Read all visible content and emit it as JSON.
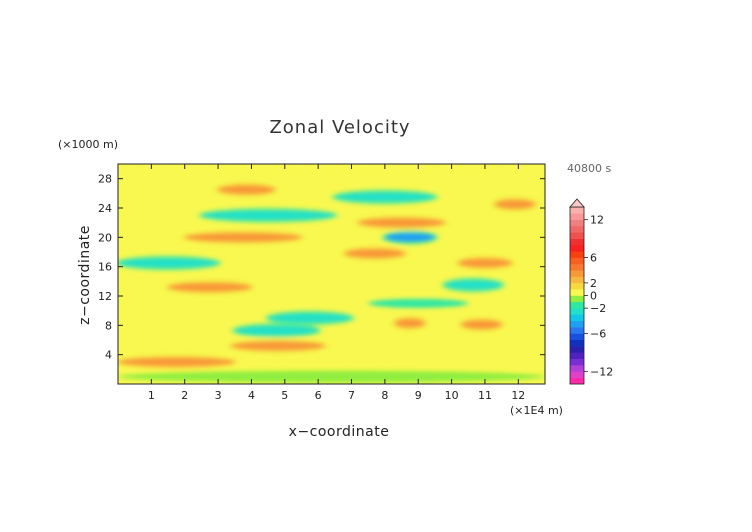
{
  "chart_data": {
    "type": "heatmap",
    "title": "Zonal Velocity",
    "xlabel": "x−coordinate",
    "ylabel": "z−coordinate",
    "x_unit_label": "(×1E4 m)",
    "y_unit_label": "(×1000 m)",
    "time_label": "40800 s",
    "xlim": [
      0,
      12.8
    ],
    "ylim": [
      0,
      30
    ],
    "x_ticks": [
      1,
      2,
      3,
      4,
      5,
      6,
      7,
      8,
      9,
      10,
      11,
      12
    ],
    "y_ticks": [
      4,
      8,
      12,
      16,
      20,
      24,
      28
    ],
    "colorbar": {
      "levels": [
        -14,
        -13,
        -12,
        -11,
        -10,
        -9,
        -8,
        -7,
        -6,
        -5,
        -4,
        -3,
        -2,
        -1,
        0,
        1,
        2,
        3,
        4,
        5,
        6,
        7,
        8,
        9,
        10,
        11,
        12,
        13,
        14
      ],
      "colors": [
        "#ff2aa8",
        "#e040c8",
        "#b040d8",
        "#7a30d0",
        "#5020c0",
        "#2a20b0",
        "#1030c0",
        "#1a50e0",
        "#2a78f0",
        "#20a0f0",
        "#10c8e8",
        "#20e0c8",
        "#30e8a0",
        "#90ee40",
        "#f8f850",
        "#f8d840",
        "#f8b840",
        "#f89838",
        "#f87830",
        "#f86020",
        "#f84010",
        "#f82020",
        "#f03030",
        "#f05050",
        "#f06868",
        "#f08080",
        "#f89898",
        "#fbb0b0"
      ],
      "tick_labels": [
        12,
        6,
        2,
        0,
        -2,
        -6,
        -12
      ],
      "extend": "max"
    },
    "field_description_bands": [
      {
        "z": 1.0,
        "x_start": 0,
        "x_end": 12.8,
        "value": -1
      },
      {
        "z": 3.0,
        "x_start": 0.0,
        "x_end": 3.5,
        "value": 3
      },
      {
        "z": 5.2,
        "x_start": 3.4,
        "x_end": 6.2,
        "value": 3
      },
      {
        "z": 7.3,
        "x_start": 3.5,
        "x_end": 6.0,
        "value": -3
      },
      {
        "z": 9.0,
        "x_start": 4.5,
        "x_end": 7.0,
        "value": -3
      },
      {
        "z": 8.3,
        "x_start": 8.3,
        "x_end": 9.2,
        "value": 3
      },
      {
        "z": 8.1,
        "x_start": 10.3,
        "x_end": 11.5,
        "value": 3
      },
      {
        "z": 11.0,
        "x_start": 7.5,
        "x_end": 10.5,
        "value": -2
      },
      {
        "z": 13.5,
        "x_start": 9.8,
        "x_end": 11.5,
        "value": -3
      },
      {
        "z": 13.2,
        "x_start": 1.5,
        "x_end": 4.0,
        "value": 3
      },
      {
        "z": 16.5,
        "x_start": 0.0,
        "x_end": 3.0,
        "value": -3
      },
      {
        "z": 16.5,
        "x_start": 10.2,
        "x_end": 11.8,
        "value": 3
      },
      {
        "z": 17.8,
        "x_start": 6.8,
        "x_end": 8.6,
        "value": 3
      },
      {
        "z": 20.0,
        "x_start": 2.0,
        "x_end": 5.5,
        "value": 3
      },
      {
        "z": 20.0,
        "x_start": 8.0,
        "x_end": 9.5,
        "value": -5
      },
      {
        "z": 22.0,
        "x_start": 7.2,
        "x_end": 9.8,
        "value": 3
      },
      {
        "z": 23.0,
        "x_start": 2.5,
        "x_end": 6.5,
        "value": -3
      },
      {
        "z": 24.5,
        "x_start": 11.3,
        "x_end": 12.5,
        "value": 3
      },
      {
        "z": 25.5,
        "x_start": 6.5,
        "x_end": 9.5,
        "value": -3
      },
      {
        "z": 26.5,
        "x_start": 3.0,
        "x_end": 4.7,
        "value": 3
      },
      {
        "z": 29.0,
        "x_start": 0.0,
        "x_end": 12.8,
        "value": 0
      }
    ]
  }
}
